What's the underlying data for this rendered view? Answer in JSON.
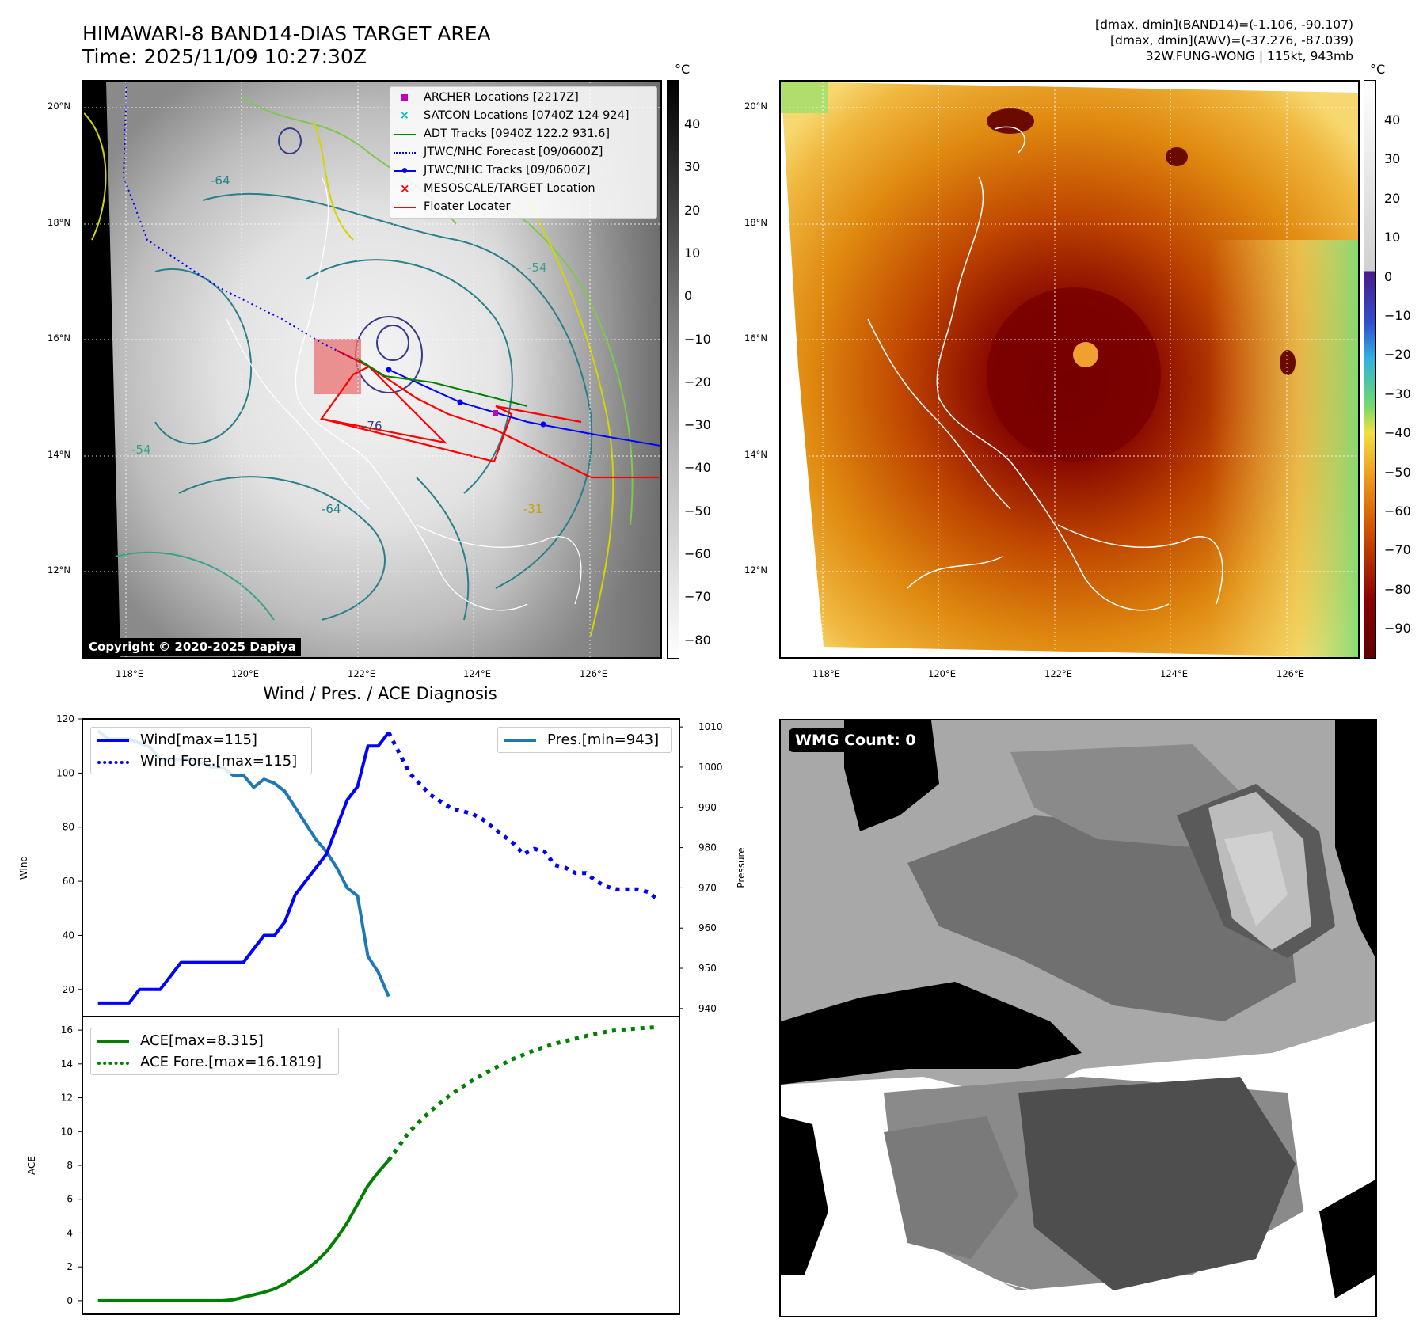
{
  "header": {
    "title_line1": "HIMAWARI-8 BAND14-DIAS TARGET AREA",
    "title_line2": "Time: 2025/11/09 10:27:30Z",
    "info_line1": "[dmax, dmin](BAND14)=(-1.106, -90.107)",
    "info_line2": "[dmax, dmin](AWV)=(-37.276, -87.039)",
    "info_line3": "32W.FUNG-WONG | 115kt, 943mb"
  },
  "map_axes": {
    "lon_ticks": [
      "118°E",
      "120°E",
      "122°E",
      "124°E",
      "126°E"
    ],
    "lat_ticks": [
      "20°N",
      "18°N",
      "16°N",
      "14°N",
      "12°N"
    ]
  },
  "left_map": {
    "colorbar_unit": "°C",
    "colorbar_ticks": [
      "40",
      "30",
      "20",
      "10",
      "0",
      "−10",
      "−20",
      "−30",
      "−40",
      "−50",
      "−60",
      "−70",
      "−80"
    ],
    "copyright": "Copyright © 2020-2025 Dapiya",
    "contour_labels": [
      "-76",
      "-64",
      "-64",
      "-54",
      "-54",
      "-31"
    ],
    "legend": [
      {
        "label": "ARCHER Locations [2217Z]",
        "color": "#bf00bf",
        "marker": "square"
      },
      {
        "label": "SATCON Locations [0740Z 124 924]",
        "color": "#00bfbf",
        "marker": "x"
      },
      {
        "label": "ADT Tracks [0940Z 122.2 931.6]",
        "color": "#008000",
        "marker": "line"
      },
      {
        "label": "JTWC/NHC Forecast [09/0600Z]",
        "color": "#0000ff",
        "marker": "dotted"
      },
      {
        "label": "JTWC/NHC Tracks [09/0600Z]",
        "color": "#0000ff",
        "marker": "line-dot"
      },
      {
        "label": "MESOSCALE/TARGET Location",
        "color": "#ff0000",
        "marker": "x"
      },
      {
        "label": "Floater Locater",
        "color": "#ff0000",
        "marker": "line"
      }
    ]
  },
  "right_map": {
    "colorbar_unit": "°C",
    "colorbar_ticks": [
      "40",
      "30",
      "20",
      "10",
      "0",
      "−10",
      "−20",
      "−30",
      "−40",
      "−50",
      "−60",
      "−70",
      "−80",
      "−90"
    ]
  },
  "wmg": {
    "label": "WMG Count: 0"
  },
  "chart_data": [
    {
      "type": "line",
      "title": "Wind / Pres. / ACE Diagnosis",
      "ylabel": "Wind",
      "y2label": "Pressure",
      "ylim": [
        10,
        120
      ],
      "y2lim": [
        938,
        1012
      ],
      "yticks": [
        20,
        40,
        60,
        80,
        100,
        120
      ],
      "y2ticks": [
        940,
        950,
        960,
        970,
        980,
        990,
        1000,
        1010
      ],
      "x": [
        0,
        1,
        2,
        3,
        4,
        5,
        6,
        7,
        8,
        9,
        10,
        11,
        12,
        13,
        14,
        15,
        16,
        17,
        18,
        19,
        20,
        21,
        22,
        23,
        24,
        25,
        26,
        27,
        28,
        29,
        30,
        31,
        32,
        33,
        34,
        35,
        36,
        37,
        38,
        39,
        40,
        41,
        42,
        43,
        44,
        45,
        46,
        47,
        48,
        49,
        50,
        51,
        52,
        53,
        54
      ],
      "series": [
        {
          "name": "Wind[max=115]",
          "color": "#0000ff",
          "style": "solid",
          "axis": "left",
          "x": [
            0,
            1,
            2,
            3,
            4,
            5,
            6,
            7,
            8,
            9,
            10,
            11,
            12,
            13,
            14,
            15,
            16,
            17,
            18,
            19,
            20,
            21,
            22,
            23,
            24,
            25,
            26,
            27,
            28
          ],
          "values": [
            15,
            15,
            15,
            15,
            20,
            20,
            20,
            25,
            30,
            30,
            30,
            30,
            30,
            30,
            30,
            35,
            40,
            40,
            45,
            55,
            60,
            65,
            70,
            80,
            90,
            95,
            110,
            110,
            115
          ]
        },
        {
          "name": "Wind Fore.[max=115]",
          "color": "#0000ff",
          "style": "dotted",
          "axis": "left",
          "x": [
            28,
            30,
            32,
            34,
            36,
            37,
            38,
            39,
            40,
            41,
            42,
            43,
            44,
            45,
            46,
            47,
            48,
            49,
            50,
            51,
            52,
            53,
            54
          ],
          "values": [
            115,
            100,
            92,
            87,
            85,
            83,
            80,
            77,
            74,
            70,
            72,
            71,
            66,
            65,
            63,
            63,
            60,
            58,
            57,
            57,
            57,
            56,
            53
          ]
        },
        {
          "name": "Pres.[min=943]",
          "color": "#1f77b4",
          "style": "solid",
          "axis": "right",
          "x": [
            0,
            1,
            2,
            3,
            4,
            5,
            6,
            7,
            8,
            9,
            10,
            11,
            12,
            13,
            14,
            15,
            16,
            17,
            18,
            19,
            20,
            21,
            22,
            23,
            24,
            25,
            26,
            27,
            28
          ],
          "values": [
            1009,
            1007,
            1007,
            1007,
            1006,
            1005,
            1002,
            1002,
            1002,
            1002,
            1001,
            1000,
            1000,
            998,
            998,
            995,
            997,
            996,
            994,
            990,
            986,
            982,
            979,
            975,
            970,
            968,
            953,
            949,
            943
          ]
        }
      ]
    },
    {
      "type": "line",
      "ylabel": "ACE",
      "ylim": [
        -0.8,
        16.8
      ],
      "yticks": [
        0,
        2,
        4,
        6,
        8,
        10,
        12,
        14,
        16
      ],
      "x": [
        0,
        1,
        2,
        3,
        4,
        5,
        6,
        7,
        8,
        9,
        10,
        11,
        12,
        13,
        14,
        15,
        16,
        17,
        18,
        19,
        20,
        21,
        22,
        23,
        24,
        25,
        26,
        27,
        28,
        29,
        30,
        31,
        32,
        33,
        34,
        35,
        36,
        37,
        38,
        39,
        40,
        41,
        42,
        43,
        44,
        45,
        46,
        47,
        48,
        49,
        50,
        51,
        52,
        53,
        54
      ],
      "series": [
        {
          "name": "ACE[max=8.315]",
          "color": "#008000",
          "style": "solid",
          "x": [
            0,
            2,
            4,
            6,
            8,
            10,
            12,
            13,
            14,
            15,
            16,
            17,
            18,
            19,
            20,
            21,
            22,
            23,
            24,
            25,
            26,
            27,
            28
          ],
          "values": [
            0,
            0,
            0,
            0,
            0,
            0,
            0,
            0.05,
            0.2,
            0.35,
            0.5,
            0.7,
            1.0,
            1.4,
            1.8,
            2.3,
            2.9,
            3.7,
            4.6,
            5.7,
            6.8,
            7.6,
            8.3
          ]
        },
        {
          "name": "ACE Fore.[max=16.1819]",
          "color": "#008000",
          "style": "dotted",
          "x": [
            28,
            30,
            32,
            34,
            36,
            38,
            40,
            42,
            44,
            46,
            48,
            50,
            52,
            54
          ],
          "values": [
            8.3,
            10.0,
            11.2,
            12.2,
            13.0,
            13.7,
            14.3,
            14.8,
            15.2,
            15.5,
            15.8,
            16.0,
            16.1,
            16.18
          ]
        }
      ]
    }
  ]
}
